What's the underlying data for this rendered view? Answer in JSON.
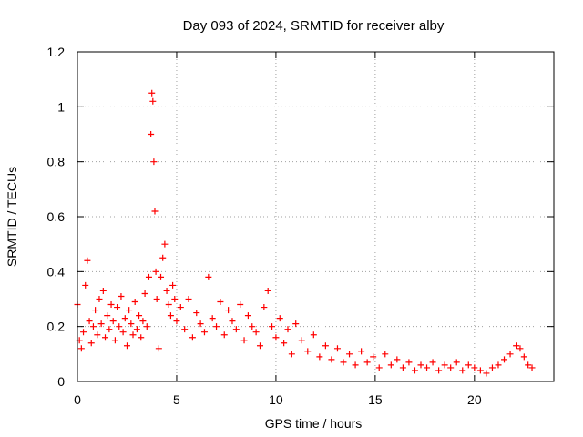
{
  "chart_data": {
    "type": "scatter",
    "title": "Day 093 of 2024, SRMTID for receiver alby",
    "xlabel": "GPS time / hours",
    "ylabel": "SRMTID / TECUs",
    "xlim": [
      0,
      24
    ],
    "ylim": [
      0,
      1.2
    ],
    "x_ticks": [
      0,
      5,
      10,
      15,
      20
    ],
    "x_tick_labels": [
      "0",
      "5",
      "10",
      "15",
      "20"
    ],
    "y_ticks": [
      0,
      0.2,
      0.4,
      0.6,
      0.8,
      1.0,
      1.2
    ],
    "y_tick_labels": [
      "0",
      "0.2",
      "0.4",
      "0.6",
      "0.8",
      "1",
      "1.2"
    ],
    "grid": true,
    "marker": "+",
    "series": [
      {
        "name": "SRMTID",
        "color": "#ff0000",
        "x": [
          0.0,
          0.1,
          0.2,
          0.3,
          0.4,
          0.5,
          0.6,
          0.7,
          0.8,
          0.9,
          1.0,
          1.1,
          1.2,
          1.3,
          1.4,
          1.5,
          1.6,
          1.7,
          1.8,
          1.9,
          2.0,
          2.1,
          2.2,
          2.3,
          2.4,
          2.5,
          2.6,
          2.7,
          2.8,
          2.9,
          3.0,
          3.1,
          3.2,
          3.3,
          3.4,
          3.5,
          3.6,
          3.7,
          3.75,
          3.8,
          3.85,
          3.9,
          3.95,
          4.0,
          4.1,
          4.2,
          4.3,
          4.4,
          4.5,
          4.6,
          4.7,
          4.8,
          4.9,
          5.0,
          5.2,
          5.4,
          5.6,
          5.8,
          6.0,
          6.2,
          6.4,
          6.6,
          6.8,
          7.0,
          7.2,
          7.4,
          7.6,
          7.8,
          8.0,
          8.2,
          8.4,
          8.6,
          8.8,
          9.0,
          9.2,
          9.4,
          9.6,
          9.8,
          10.0,
          10.2,
          10.4,
          10.6,
          10.8,
          11.0,
          11.3,
          11.6,
          11.9,
          12.2,
          12.5,
          12.8,
          13.1,
          13.4,
          13.7,
          14.0,
          14.3,
          14.6,
          14.9,
          15.2,
          15.5,
          15.8,
          16.1,
          16.4,
          16.7,
          17.0,
          17.3,
          17.6,
          17.9,
          18.2,
          18.5,
          18.8,
          19.1,
          19.4,
          19.7,
          20.0,
          20.3,
          20.6,
          20.9,
          21.2,
          21.5,
          21.8,
          22.1,
          22.3,
          22.5,
          22.7,
          22.9
        ],
        "y": [
          0.28,
          0.15,
          0.12,
          0.18,
          0.35,
          0.44,
          0.22,
          0.14,
          0.2,
          0.26,
          0.17,
          0.3,
          0.21,
          0.33,
          0.16,
          0.24,
          0.19,
          0.28,
          0.22,
          0.15,
          0.27,
          0.2,
          0.31,
          0.18,
          0.23,
          0.13,
          0.26,
          0.21,
          0.17,
          0.29,
          0.19,
          0.24,
          0.16,
          0.22,
          0.32,
          0.2,
          0.38,
          0.9,
          1.05,
          1.02,
          0.8,
          0.62,
          0.4,
          0.3,
          0.12,
          0.38,
          0.45,
          0.5,
          0.33,
          0.28,
          0.24,
          0.35,
          0.3,
          0.22,
          0.27,
          0.19,
          0.3,
          0.16,
          0.25,
          0.21,
          0.18,
          0.38,
          0.23,
          0.2,
          0.29,
          0.17,
          0.26,
          0.22,
          0.19,
          0.28,
          0.15,
          0.24,
          0.2,
          0.18,
          0.13,
          0.27,
          0.33,
          0.2,
          0.16,
          0.23,
          0.14,
          0.19,
          0.1,
          0.21,
          0.15,
          0.11,
          0.17,
          0.09,
          0.13,
          0.08,
          0.12,
          0.07,
          0.1,
          0.06,
          0.11,
          0.07,
          0.09,
          0.05,
          0.1,
          0.06,
          0.08,
          0.05,
          0.07,
          0.04,
          0.06,
          0.05,
          0.07,
          0.04,
          0.06,
          0.05,
          0.07,
          0.04,
          0.06,
          0.05,
          0.04,
          0.03,
          0.05,
          0.06,
          0.08,
          0.1,
          0.13,
          0.12,
          0.09,
          0.06,
          0.05
        ]
      }
    ]
  }
}
